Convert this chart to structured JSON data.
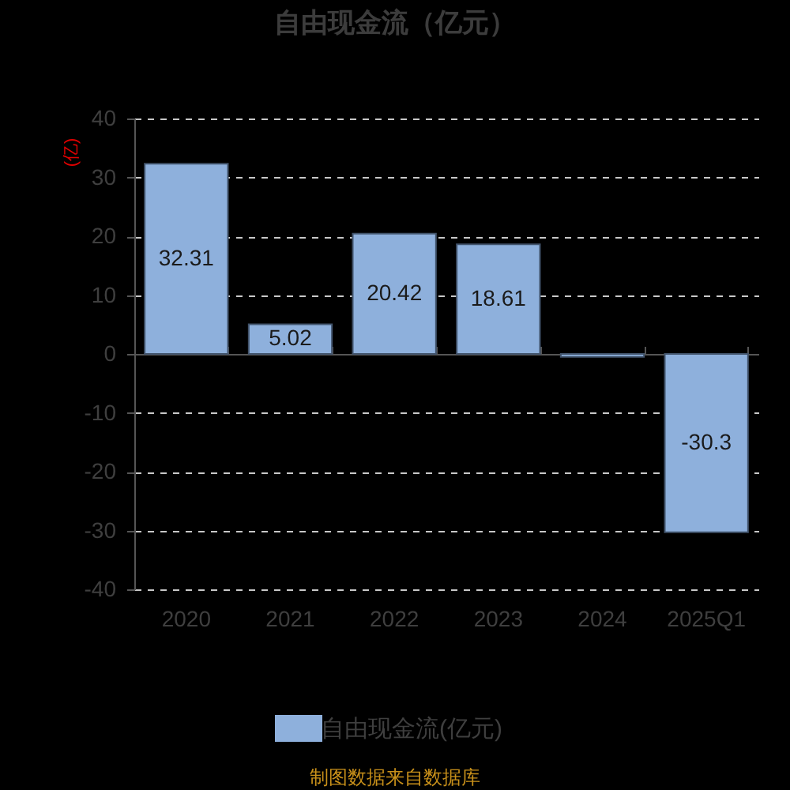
{
  "chart_data": {
    "type": "bar",
    "title": "自由现金流（亿元）",
    "ylabel": "(亿)",
    "categories": [
      "2020",
      "2021",
      "2022",
      "2023",
      "2024",
      "2025Q1"
    ],
    "series": [
      {
        "name": "自由现金流(亿元)",
        "color": "#8eb0dc",
        "values": [
          32.31,
          5.02,
          20.42,
          18.61,
          -0.5,
          -30.3
        ],
        "value_labels": [
          "32.31",
          "5.02",
          "20.42",
          "18.61",
          null,
          "-30.3"
        ]
      }
    ],
    "ylim": [
      -40,
      40
    ],
    "yticks": [
      -40,
      -30,
      -20,
      -10,
      0,
      10,
      20,
      30,
      40
    ],
    "grid": true,
    "legend": "bottom",
    "annotations": [
      "制图数据来自数据库"
    ]
  }
}
